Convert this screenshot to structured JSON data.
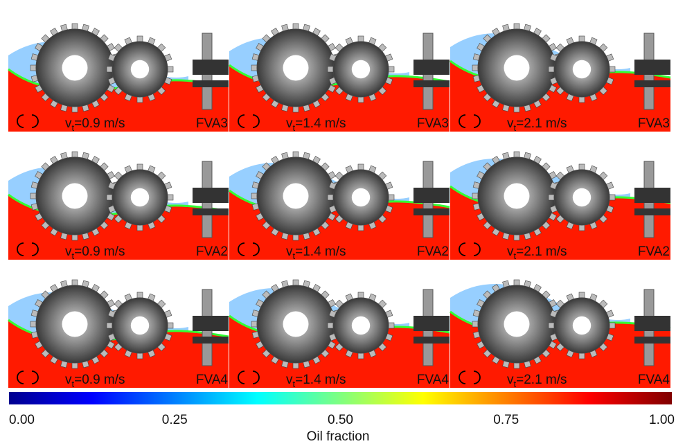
{
  "velocity_symbol": "v",
  "velocity_subscript": "t",
  "panels": [
    {
      "velocity": "=0.9 m/s",
      "oil": "FVA3"
    },
    {
      "velocity": "=1.4 m/s",
      "oil": "FVA3"
    },
    {
      "velocity": "=2.1 m/s",
      "oil": "FVA3"
    },
    {
      "velocity": "=0.9 m/s",
      "oil": "FVA2"
    },
    {
      "velocity": "=1.4 m/s",
      "oil": "FVA2"
    },
    {
      "velocity": "=2.1 m/s",
      "oil": "FVA2"
    },
    {
      "velocity": "=0.9 m/s",
      "oil": "FVA4"
    },
    {
      "velocity": "=1.4 m/s",
      "oil": "FVA4"
    },
    {
      "velocity": "=2.1 m/s",
      "oil": "FVA4"
    }
  ],
  "colorbar": {
    "ticks": [
      "0.00",
      "0.25",
      "0.50",
      "0.75",
      "1.00"
    ],
    "label": "Oil fraction"
  }
}
